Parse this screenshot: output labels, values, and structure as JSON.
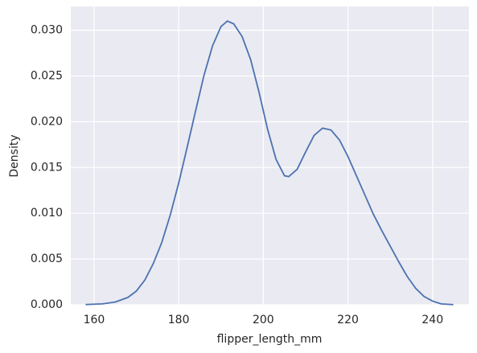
{
  "chart_data": {
    "type": "line",
    "x_label": "flipper_length_mm",
    "y_label": "Density",
    "x": [
      158,
      162,
      165,
      168,
      170,
      172,
      174,
      176,
      178,
      180,
      182,
      184,
      186,
      188,
      190,
      191.5,
      193,
      195,
      197,
      199,
      201,
      203,
      205,
      206,
      208,
      210,
      212,
      214,
      216,
      218,
      220,
      222,
      224,
      226,
      228,
      230,
      232,
      234,
      236,
      238,
      240,
      242,
      244.9
    ],
    "values": [
      2e-05,
      0.0001,
      0.0003,
      0.0008,
      0.0015,
      0.0027,
      0.0045,
      0.0068,
      0.0098,
      0.0133,
      0.0172,
      0.0212,
      0.0251,
      0.0283,
      0.0304,
      0.031,
      0.0307,
      0.0293,
      0.0268,
      0.0232,
      0.0192,
      0.0159,
      0.0141,
      0.014,
      0.0148,
      0.0167,
      0.0185,
      0.0193,
      0.0191,
      0.018,
      0.0162,
      0.0141,
      0.012,
      0.0099,
      0.0081,
      0.0064,
      0.0047,
      0.0031,
      0.0018,
      0.0009,
      0.0004,
      0.0001,
      1e-05
    ],
    "color": "#4c72b0",
    "xlim": [
      154.5,
      248.6
    ],
    "xticks": [
      160,
      180,
      200,
      220,
      240
    ],
    "ylim": [
      0,
      0.0326
    ],
    "yticks": [
      {
        "value": 0,
        "label": "0.000"
      },
      {
        "value": 0.005,
        "label": "0.005"
      },
      {
        "value": 0.01,
        "label": "0.010"
      },
      {
        "value": 0.015,
        "label": "0.015"
      },
      {
        "value": 0.02,
        "label": "0.020"
      },
      {
        "value": 0.025,
        "label": "0.025"
      },
      {
        "value": 0.03,
        "label": "0.030"
      }
    ],
    "grid": true
  }
}
